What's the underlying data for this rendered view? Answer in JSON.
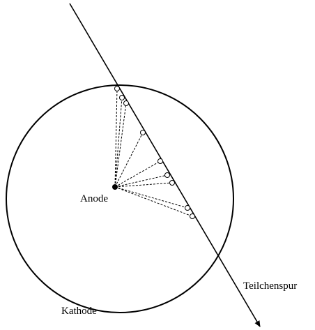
{
  "labels": {
    "anode": "Anode",
    "track": "Teilchenspur",
    "cathode": "Kathode"
  }
}
